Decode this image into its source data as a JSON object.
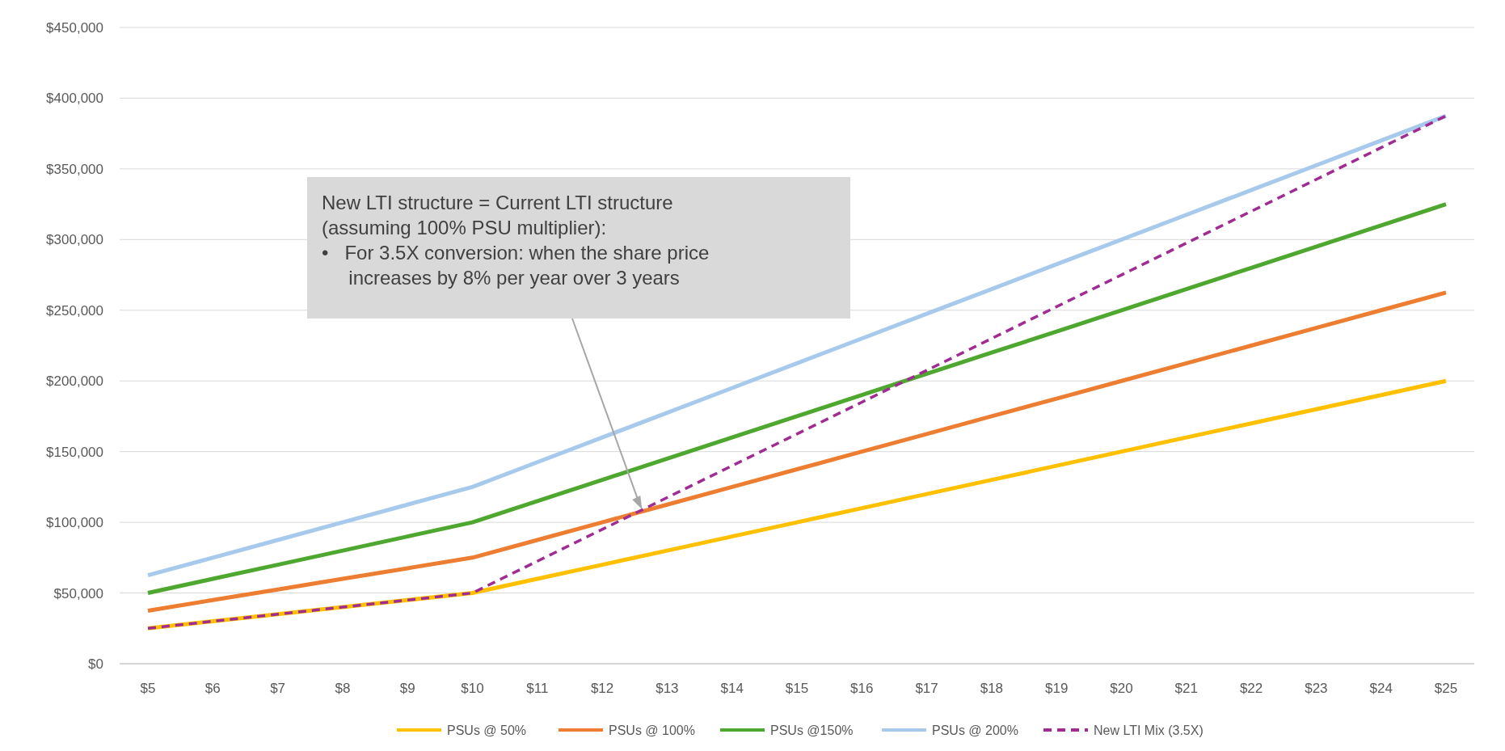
{
  "chart_data": {
    "type": "line",
    "categories": [
      "$5",
      "$6",
      "$7",
      "$8",
      "$9",
      "$10",
      "$11",
      "$12",
      "$13",
      "$14",
      "$15",
      "$16",
      "$17",
      "$18",
      "$19",
      "$20",
      "$21",
      "$22",
      "$23",
      "$24",
      "$25"
    ],
    "series": [
      {
        "name": "PSUs @ 50%",
        "color": "#ffc000",
        "values": [
          25000,
          30000,
          35000,
          40000,
          45000,
          50000,
          60000,
          70000,
          80000,
          90000,
          100000,
          110000,
          120000,
          130000,
          140000,
          150000,
          160000,
          170000,
          180000,
          190000,
          200000
        ]
      },
      {
        "name": "PSUs @ 100%",
        "color": "#ed7d31",
        "values": [
          37500,
          45000,
          52500,
          60000,
          67500,
          75000,
          87500,
          100000,
          112500,
          125000,
          137500,
          150000,
          162500,
          175000,
          187500,
          200000,
          212500,
          225000,
          237500,
          250000,
          262500
        ]
      },
      {
        "name": "PSUs @150%",
        "color": "#4ea72e",
        "values": [
          50000,
          60000,
          70000,
          80000,
          90000,
          100000,
          115000,
          130000,
          145000,
          160000,
          175000,
          190000,
          205000,
          220000,
          235000,
          250000,
          265000,
          280000,
          295000,
          310000,
          325000
        ]
      },
      {
        "name": "PSUs @ 200%",
        "color": "#a6c9ec",
        "values": [
          62500,
          75000,
          87500,
          100000,
          112500,
          125000,
          142500,
          160000,
          177500,
          195000,
          212500,
          230000,
          247500,
          265000,
          282500,
          300000,
          317500,
          335000,
          352500,
          370000,
          387500
        ]
      },
      {
        "name": "New LTI Mix (3.5X)",
        "color": "#a02b93",
        "line_style": "dashed",
        "values": [
          25000,
          30000,
          35000,
          40000,
          45000,
          50000,
          72500,
          95000,
          117500,
          140000,
          162500,
          185000,
          207500,
          230000,
          252500,
          275000,
          297500,
          320000,
          342500,
          365000,
          387500
        ]
      }
    ],
    "ylim": [
      0,
      450000
    ],
    "yticks": [
      {
        "value": 0,
        "label": "$0"
      },
      {
        "value": 50000,
        "label": "$50,000"
      },
      {
        "value": 100000,
        "label": "$100,000"
      },
      {
        "value": 150000,
        "label": "$150,000"
      },
      {
        "value": 200000,
        "label": "$200,000"
      },
      {
        "value": 250000,
        "label": "$250,000"
      },
      {
        "value": 300000,
        "label": "$300,000"
      },
      {
        "value": 350000,
        "label": "$350,000"
      },
      {
        "value": 400000,
        "label": "$400,000"
      },
      {
        "value": 450000,
        "label": "$450,000"
      }
    ],
    "grid": "y",
    "legend": "bottom",
    "annotations": [
      "New LTI structure = Current LTI structure\n(assuming 100% PSU multiplier):\n•   For 3.5X conversion: when the share price\n     increases by 8% per year over 3 years"
    ]
  }
}
